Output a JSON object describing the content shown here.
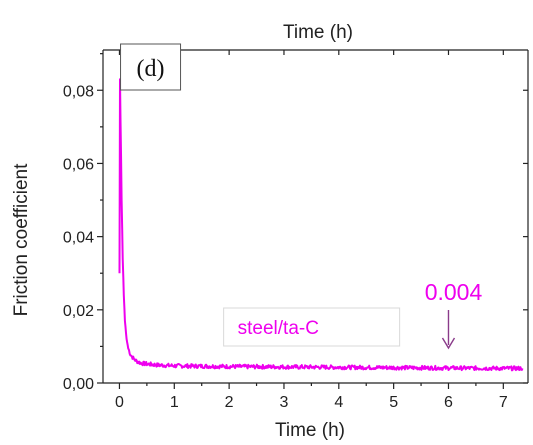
{
  "chart_data": {
    "type": "line",
    "top_label": "Time (h)",
    "xlabel": "Time (h)",
    "ylabel": "Friction coefficient",
    "xlim": [
      -0.3,
      7.45
    ],
    "ylim": [
      0,
      0.091
    ],
    "xticks": [
      "0",
      "1",
      "2",
      "3",
      "4",
      "5",
      "6",
      "7"
    ],
    "yticks": [
      "0,00",
      "0,02",
      "0,04",
      "0,06",
      "0,08"
    ],
    "panel_label": "(d)",
    "series": [
      {
        "name": "steel/ta-C",
        "color": "#ee00ee",
        "x": [
          0,
          0.01,
          0.02,
          0.04,
          0.06,
          0.08,
          0.1,
          0.13,
          0.16,
          0.2,
          0.25,
          0.3,
          0.35,
          0.4,
          0.5,
          0.7,
          1,
          1.5,
          2,
          3,
          4,
          5,
          6,
          7,
          7.35
        ],
        "y": [
          0.03,
          0.083,
          0.072,
          0.05,
          0.034,
          0.024,
          0.017,
          0.012,
          0.0095,
          0.0078,
          0.0068,
          0.0061,
          0.0057,
          0.0054,
          0.0052,
          0.0049,
          0.0047,
          0.0046,
          0.0045,
          0.0044,
          0.0043,
          0.0042,
          0.0041,
          0.004,
          0.004
        ]
      }
    ],
    "annotations": [
      {
        "text": "0.004",
        "x": 6,
        "y": 0.004
      }
    ],
    "grid": false
  }
}
